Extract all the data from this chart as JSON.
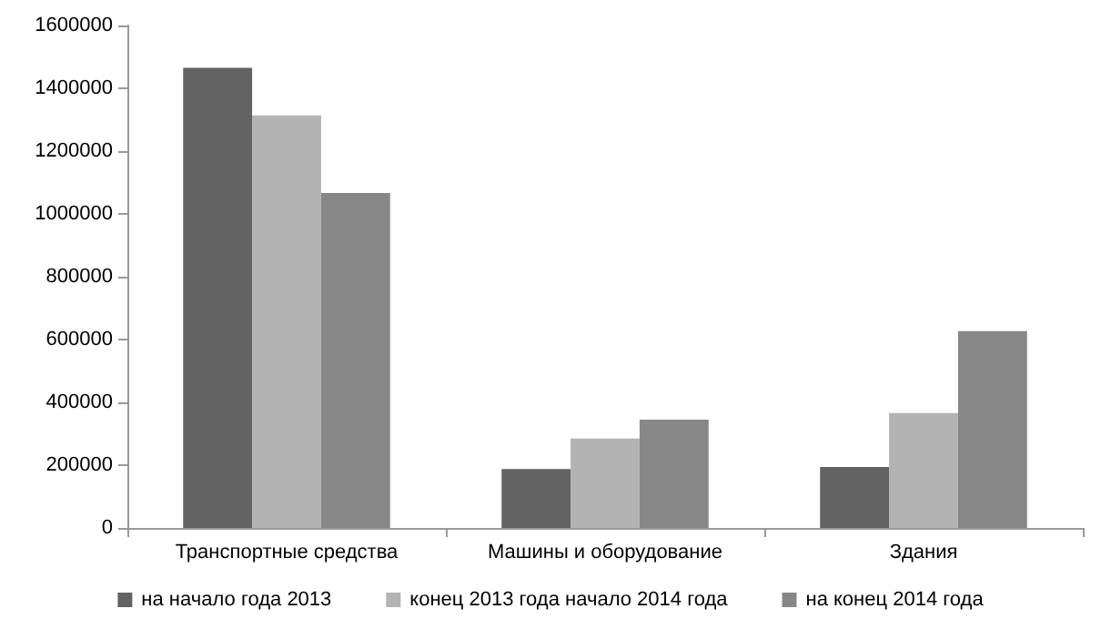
{
  "chart_data": {
    "type": "bar",
    "categories": [
      "Транспортные средства",
      "Машины и оборудование",
      "Здания"
    ],
    "series": [
      {
        "name": "на начало года 2013",
        "color": "#636363",
        "values": [
          1465000,
          188000,
          194000
        ]
      },
      {
        "name": "конец 2013 года начало 2014 года",
        "color": "#b3b3b3",
        "values": [
          1314000,
          285000,
          366000
        ]
      },
      {
        "name": "на конец 2014 года",
        "color": "#878787",
        "values": [
          1067000,
          345000,
          627000
        ]
      }
    ],
    "ylim": [
      0,
      1600000
    ],
    "yticks": [
      0,
      200000,
      400000,
      600000,
      800000,
      1000000,
      1200000,
      1400000,
      1600000
    ],
    "grid": false,
    "legend": "bottom"
  }
}
